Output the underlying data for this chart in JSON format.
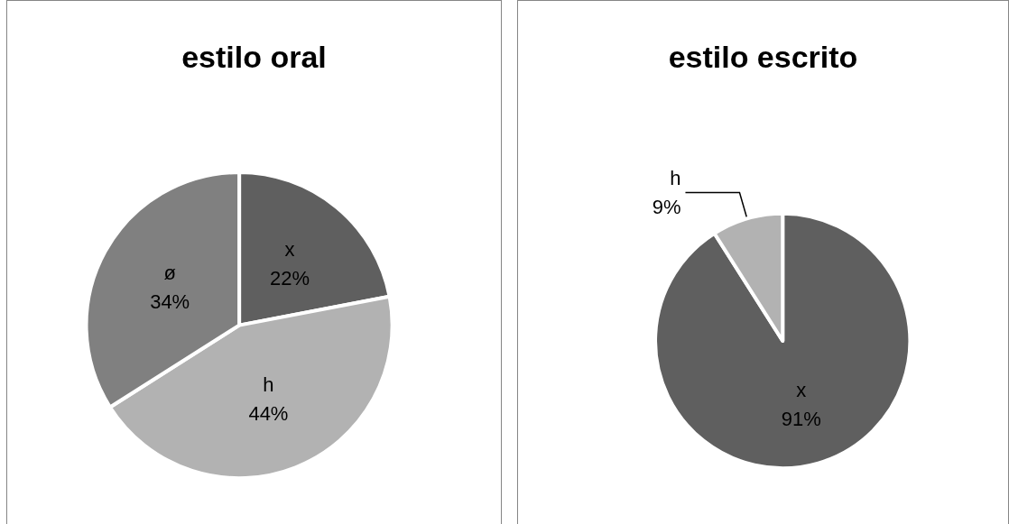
{
  "chart_data": [
    {
      "type": "pie",
      "title": "estilo oral",
      "categories": [
        "x",
        "h",
        "ø"
      ],
      "values": [
        22,
        44,
        34
      ],
      "colors": [
        "#5f5f5f",
        "#b2b2b2",
        "#808080"
      ],
      "value_labels": [
        "22%",
        "44%",
        "34%"
      ],
      "legend": false
    },
    {
      "type": "pie",
      "title": "estilo escrito",
      "categories": [
        "x",
        "h"
      ],
      "values": [
        91,
        9
      ],
      "colors": [
        "#5f5f5f",
        "#b2b2b2"
      ],
      "value_labels": [
        "91%",
        "9%"
      ],
      "legend": false
    }
  ]
}
